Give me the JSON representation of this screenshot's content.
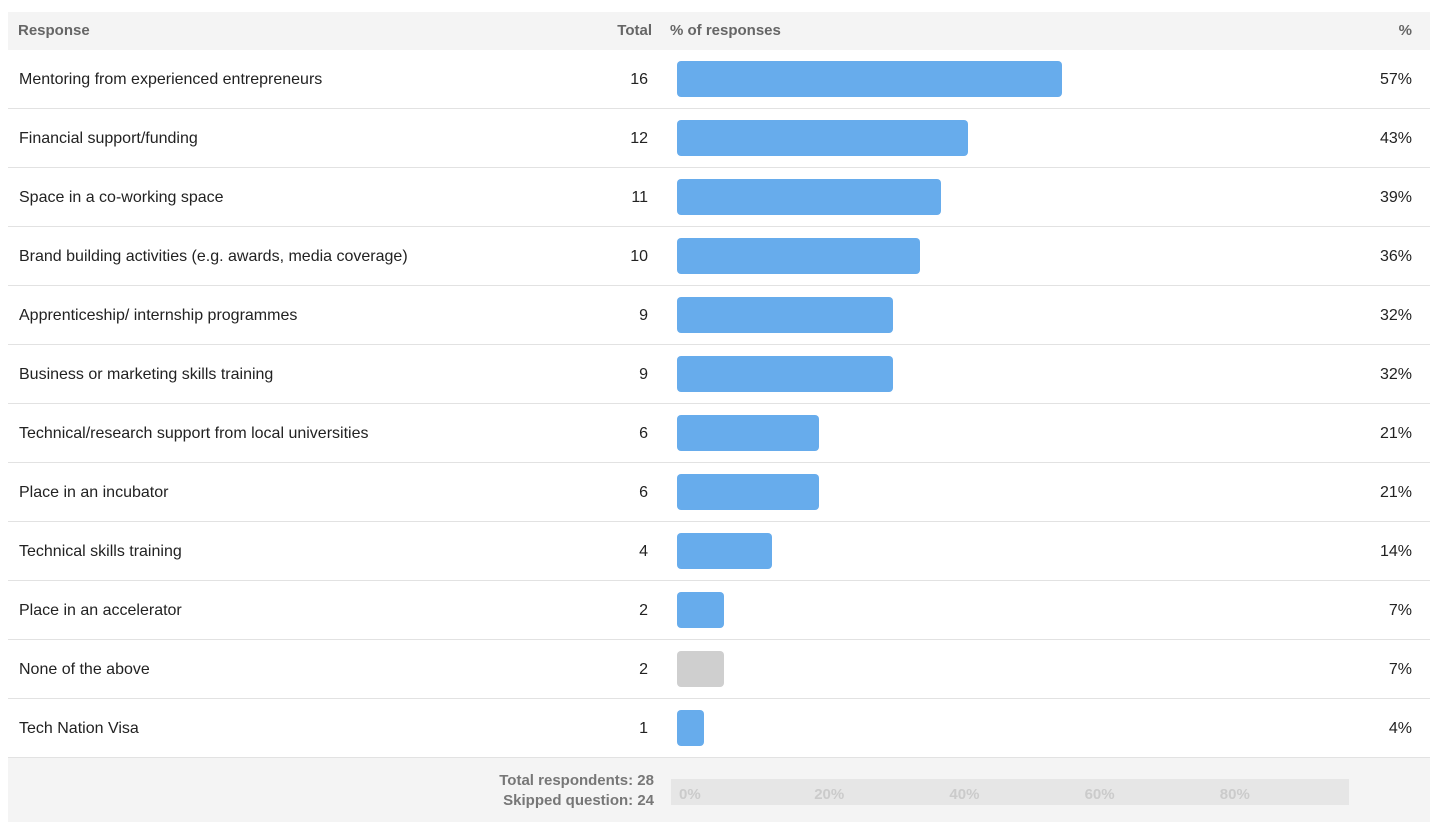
{
  "header": {
    "response_label": "Response",
    "total_label": "Total",
    "bar_label": "% of responses",
    "pct_label": "%"
  },
  "footer": {
    "total_respondents": "Total respondents: 28",
    "skipped_question": "Skipped question: 24"
  },
  "colors": {
    "bar": "#67acec",
    "bar_none": "#cfcfcf"
  },
  "chart_data": {
    "type": "bar",
    "orientation": "horizontal",
    "categories": [
      "Mentoring from experienced entrepreneurs",
      "Financial support/funding",
      "Space in a co-working space",
      "Brand building activities (e.g. awards, media coverage)",
      "Apprenticeship/ internship programmes",
      "Business or marketing skills training",
      "Technical/research support from local universities",
      "Place in an incubator",
      "Technical skills training",
      "Place in an accelerator",
      "None of the above",
      "Tech Nation Visa"
    ],
    "totals": [
      16,
      12,
      11,
      10,
      9,
      9,
      6,
      6,
      4,
      2,
      2,
      1
    ],
    "values": [
      57,
      43,
      39,
      36,
      32,
      32,
      21,
      21,
      14,
      7,
      7,
      4
    ],
    "percent_labels": [
      "57%",
      "43%",
      "39%",
      "36%",
      "32%",
      "32%",
      "21%",
      "21%",
      "14%",
      "7%",
      "7%",
      "4%"
    ],
    "highlight_gray": [
      false,
      false,
      false,
      false,
      false,
      false,
      false,
      false,
      false,
      false,
      true,
      false
    ],
    "xlim": [
      0,
      100
    ],
    "x_ticks": [
      0,
      20,
      40,
      60,
      80
    ],
    "x_tick_labels": [
      "0%",
      "20%",
      "40%",
      "60%",
      "80%"
    ],
    "legend": "none",
    "grid": false
  }
}
